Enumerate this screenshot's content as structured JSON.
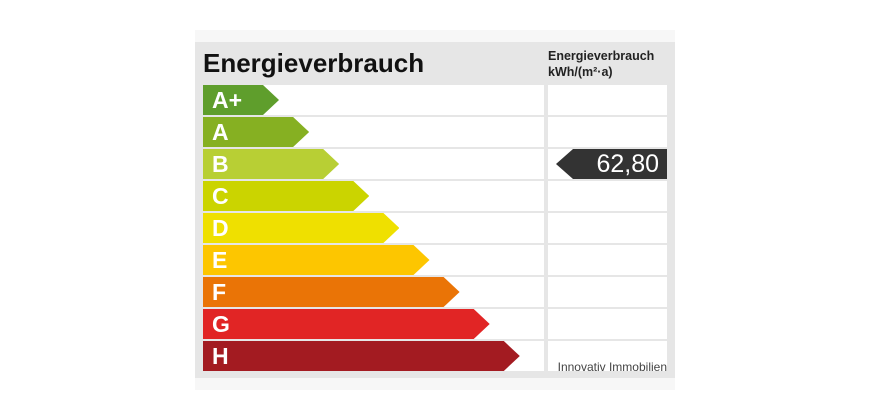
{
  "title": "Energieverbrauch",
  "unit_line1": "Energieverbrauch",
  "unit_line2": "kWh/(m²·a)",
  "classes": [
    {
      "label": "A+",
      "color": "#5f9e2c"
    },
    {
      "label": "A",
      "color": "#86b022"
    },
    {
      "label": "B",
      "color": "#b8cf34"
    },
    {
      "label": "C",
      "color": "#cbd400"
    },
    {
      "label": "D",
      "color": "#efe000"
    },
    {
      "label": "E",
      "color": "#fdc600"
    },
    {
      "label": "F",
      "color": "#ea7406"
    },
    {
      "label": "G",
      "color": "#e12525"
    },
    {
      "label": "H",
      "color": "#a31b21"
    }
  ],
  "value": {
    "text": "62,80",
    "class": "B",
    "color": "#333333"
  },
  "footer": "Innovativ Immobilien"
}
